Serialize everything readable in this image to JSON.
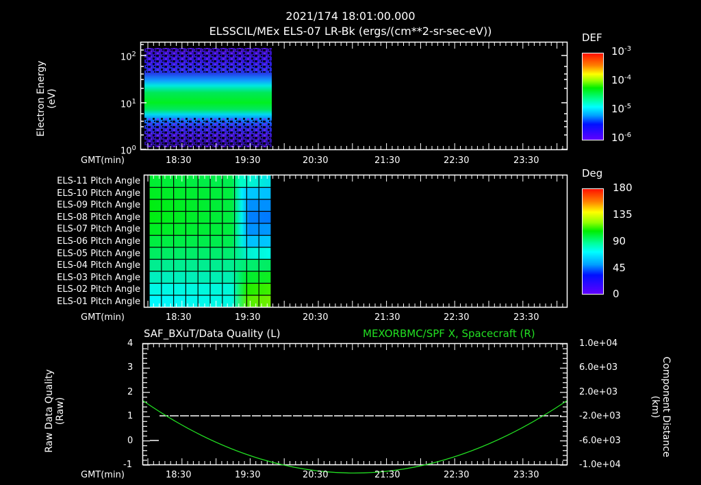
{
  "header": {
    "datetime": "2021/174 18:01:00.000",
    "subtitle": "ELSSCIL/MEx ELS-07 LR-Bk  (ergs/(cm**2-sr-sec-eV))"
  },
  "panel1": {
    "ylabel_line1": "Electron Energy",
    "ylabel_line2": "(eV)",
    "yticks": [
      {
        "base": "10",
        "exp": "2"
      },
      {
        "base": "10",
        "exp": "1"
      },
      {
        "base": "10",
        "exp": "0"
      }
    ],
    "xlabel": "GMT(min)",
    "colorbar": {
      "title": "DEF",
      "ticks": [
        {
          "base": "10",
          "exp": "-3"
        },
        {
          "base": "10",
          "exp": "-4"
        },
        {
          "base": "10",
          "exp": "-5"
        },
        {
          "base": "10",
          "exp": "-6"
        }
      ]
    }
  },
  "panel2": {
    "row_labels": [
      "ELS-11 Pitch Angle",
      "ELS-10 Pitch Angle",
      "ELS-09 Pitch Angle",
      "ELS-08 Pitch Angle",
      "ELS-07 Pitch Angle",
      "ELS-06 Pitch Angle",
      "ELS-05 Pitch Angle",
      "ELS-04 Pitch Angle",
      "ELS-03 Pitch Angle",
      "ELS-02 Pitch Angle",
      "ELS-01 Pitch Angle"
    ],
    "xlabel": "GMT(min)",
    "colorbar": {
      "title": "Deg",
      "ticks": [
        "180",
        "135",
        "90",
        "45",
        "0"
      ]
    }
  },
  "panel3": {
    "left_title": "SAF_BXuT/Data Quality (L)",
    "right_title": "MEXORBMC/SPF X, Spacecraft (R)",
    "right_title_color": "#22e022",
    "ylabel_left_line1": "Raw Data Quality",
    "ylabel_left_line2": "(Raw)",
    "ylabel_right_line1": "Component Distance",
    "ylabel_right_line2": "(km)",
    "yticks_left": [
      "4",
      "3",
      "2",
      "1",
      "0",
      "-1"
    ],
    "yticks_right": [
      "1.0e+04",
      "6.0e+03",
      "2.0e+03",
      "-2.0e+03",
      "-6.0e+03",
      "-1.0e+04"
    ],
    "xlabel": "GMT(min)"
  },
  "xticks": [
    "18:30",
    "19:30",
    "20:30",
    "21:30",
    "22:30",
    "23:30"
  ],
  "chart_data": [
    {
      "type": "heatmap",
      "title": "ELSSCIL/MEx ELS-07 LR-Bk (ergs/(cm**2-sr-sec-eV))",
      "xlabel": "GMT(min)",
      "ylabel": "Electron Energy (eV)",
      "yscale": "log",
      "ylim": [
        1,
        150
      ],
      "x_ticks": [
        "18:30",
        "19:30",
        "20:30",
        "21:30",
        "22:30",
        "23:30"
      ],
      "data_time_range": [
        "18:01",
        "19:52"
      ],
      "colorbar": {
        "label": "DEF",
        "scale": "log",
        "range": [
          1e-06,
          0.001
        ]
      },
      "description": "Peak flux ~1e-4 between ~6 and ~30 eV; sparse low-level noise above and below"
    },
    {
      "type": "heatmap",
      "title": "Pitch Angle",
      "xlabel": "GMT(min)",
      "rows": [
        "ELS-11",
        "ELS-10",
        "ELS-09",
        "ELS-08",
        "ELS-07",
        "ELS-06",
        "ELS-05",
        "ELS-04",
        "ELS-03",
        "ELS-02",
        "ELS-01"
      ],
      "colorbar": {
        "label": "Deg",
        "range": [
          0,
          180
        ]
      },
      "approx_values_deg": {
        "early_period_top_rows": 100,
        "early_period_bottom_rows": 70,
        "late_period_top_rows": 55,
        "late_period_ELS-08": 40,
        "late_period_bottom_rows": 110
      }
    },
    {
      "type": "line",
      "xlabel": "GMT(min)",
      "x_ticks": [
        "18:30",
        "19:30",
        "20:30",
        "21:30",
        "22:30",
        "23:30"
      ],
      "series": [
        {
          "name": "SAF_BXuT/Data Quality (L)",
          "axis": "left",
          "color": "#ffffff",
          "points": [
            [
              "18:04",
              0
            ],
            [
              "18:10",
              0
            ],
            [
              "18:18",
              1
            ],
            [
              "23:58",
              1
            ]
          ]
        },
        {
          "name": "MEXORBMC/SPF X, Spacecraft (R)",
          "axis": "right",
          "color": "#22e022",
          "points": [
            [
              "18:00",
              2500
            ],
            [
              "18:30",
              -1200
            ],
            [
              "19:30",
              -5500
            ],
            [
              "20:30",
              -8300
            ],
            [
              "21:07",
              -8900
            ],
            [
              "21:30",
              -8700
            ],
            [
              "22:30",
              -6400
            ],
            [
              "23:30",
              -1800
            ],
            [
              "24:00",
              2500
            ]
          ]
        }
      ],
      "ylim_left": [
        -1,
        4
      ],
      "ylim_right": [
        -10000,
        10000
      ]
    }
  ]
}
